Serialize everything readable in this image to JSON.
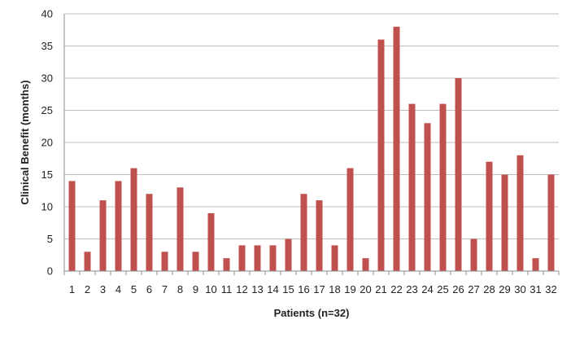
{
  "chart_data": {
    "type": "bar",
    "title": "",
    "xlabel": "Patients  (n=32)",
    "ylabel": "Clinical Benefit (months)",
    "ylim": [
      0,
      40
    ],
    "y_ticks": [
      0,
      5,
      10,
      15,
      20,
      25,
      30,
      35,
      40
    ],
    "grid": true,
    "legend": "none",
    "bar_color": "#c0504d",
    "grid_color": "#bfbfbf",
    "categories": [
      "1",
      "2",
      "3",
      "4",
      "5",
      "6",
      "7",
      "8",
      "9",
      "10",
      "11",
      "12",
      "13",
      "14",
      "15",
      "16",
      "17",
      "18",
      "19",
      "20",
      "21",
      "22",
      "23",
      "24",
      "25",
      "26",
      "27",
      "28",
      "29",
      "30",
      "31",
      "32"
    ],
    "values": [
      14,
      3,
      11,
      14,
      16,
      12,
      3,
      13,
      3,
      9,
      2,
      4,
      4,
      4,
      5,
      12,
      11,
      4,
      16,
      2,
      36,
      38,
      26,
      23,
      26,
      30,
      5,
      17,
      15,
      18,
      2,
      15
    ]
  }
}
